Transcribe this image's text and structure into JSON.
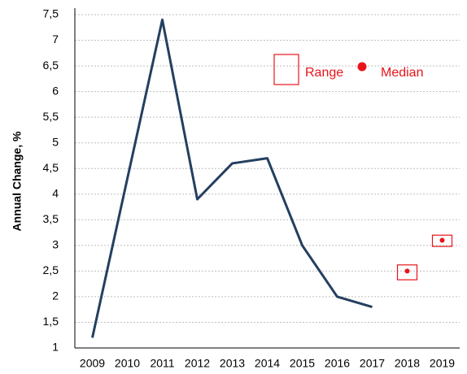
{
  "chart_data": {
    "type": "line",
    "y_label": "Annual Change, %",
    "categories": [
      "2009",
      "2010",
      "2011",
      "2012",
      "2013",
      "2014",
      "2015",
      "2016",
      "2017",
      "2018",
      "2019"
    ],
    "series": [
      {
        "color": "#243f60",
        "values": [
          1.2,
          4.3,
          7.4,
          3.9,
          4.6,
          4.7,
          3.0,
          2.0,
          1.8,
          null,
          null
        ]
      },
      {
        "name": "Range",
        "color": "#e8141a",
        "low": [
          null,
          null,
          null,
          null,
          null,
          null,
          null,
          null,
          null,
          2.33,
          2.98
        ],
        "high": [
          null,
          null,
          null,
          null,
          null,
          null,
          null,
          null,
          null,
          2.62,
          3.2
        ]
      },
      {
        "name": "Median",
        "color": "#e8141a",
        "values": [
          null,
          null,
          null,
          null,
          null,
          null,
          null,
          null,
          null,
          2.5,
          3.1
        ]
      }
    ],
    "ylim": [
      1,
      7.5
    ],
    "yticks": [
      1,
      {
        "value": 1.5,
        "label": "1,5"
      },
      2,
      {
        "value": 2.5,
        "label": "2,5"
      },
      3,
      {
        "value": 3.5,
        "label": "3,5"
      },
      4,
      {
        "value": 4.5,
        "label": "4,5"
      },
      5,
      {
        "value": 5.5,
        "label": "5,5"
      },
      6,
      {
        "value": 6.5,
        "label": "6,5"
      },
      7,
      {
        "value": 7.5,
        "label": "7,5"
      }
    ],
    "grid": true
  }
}
